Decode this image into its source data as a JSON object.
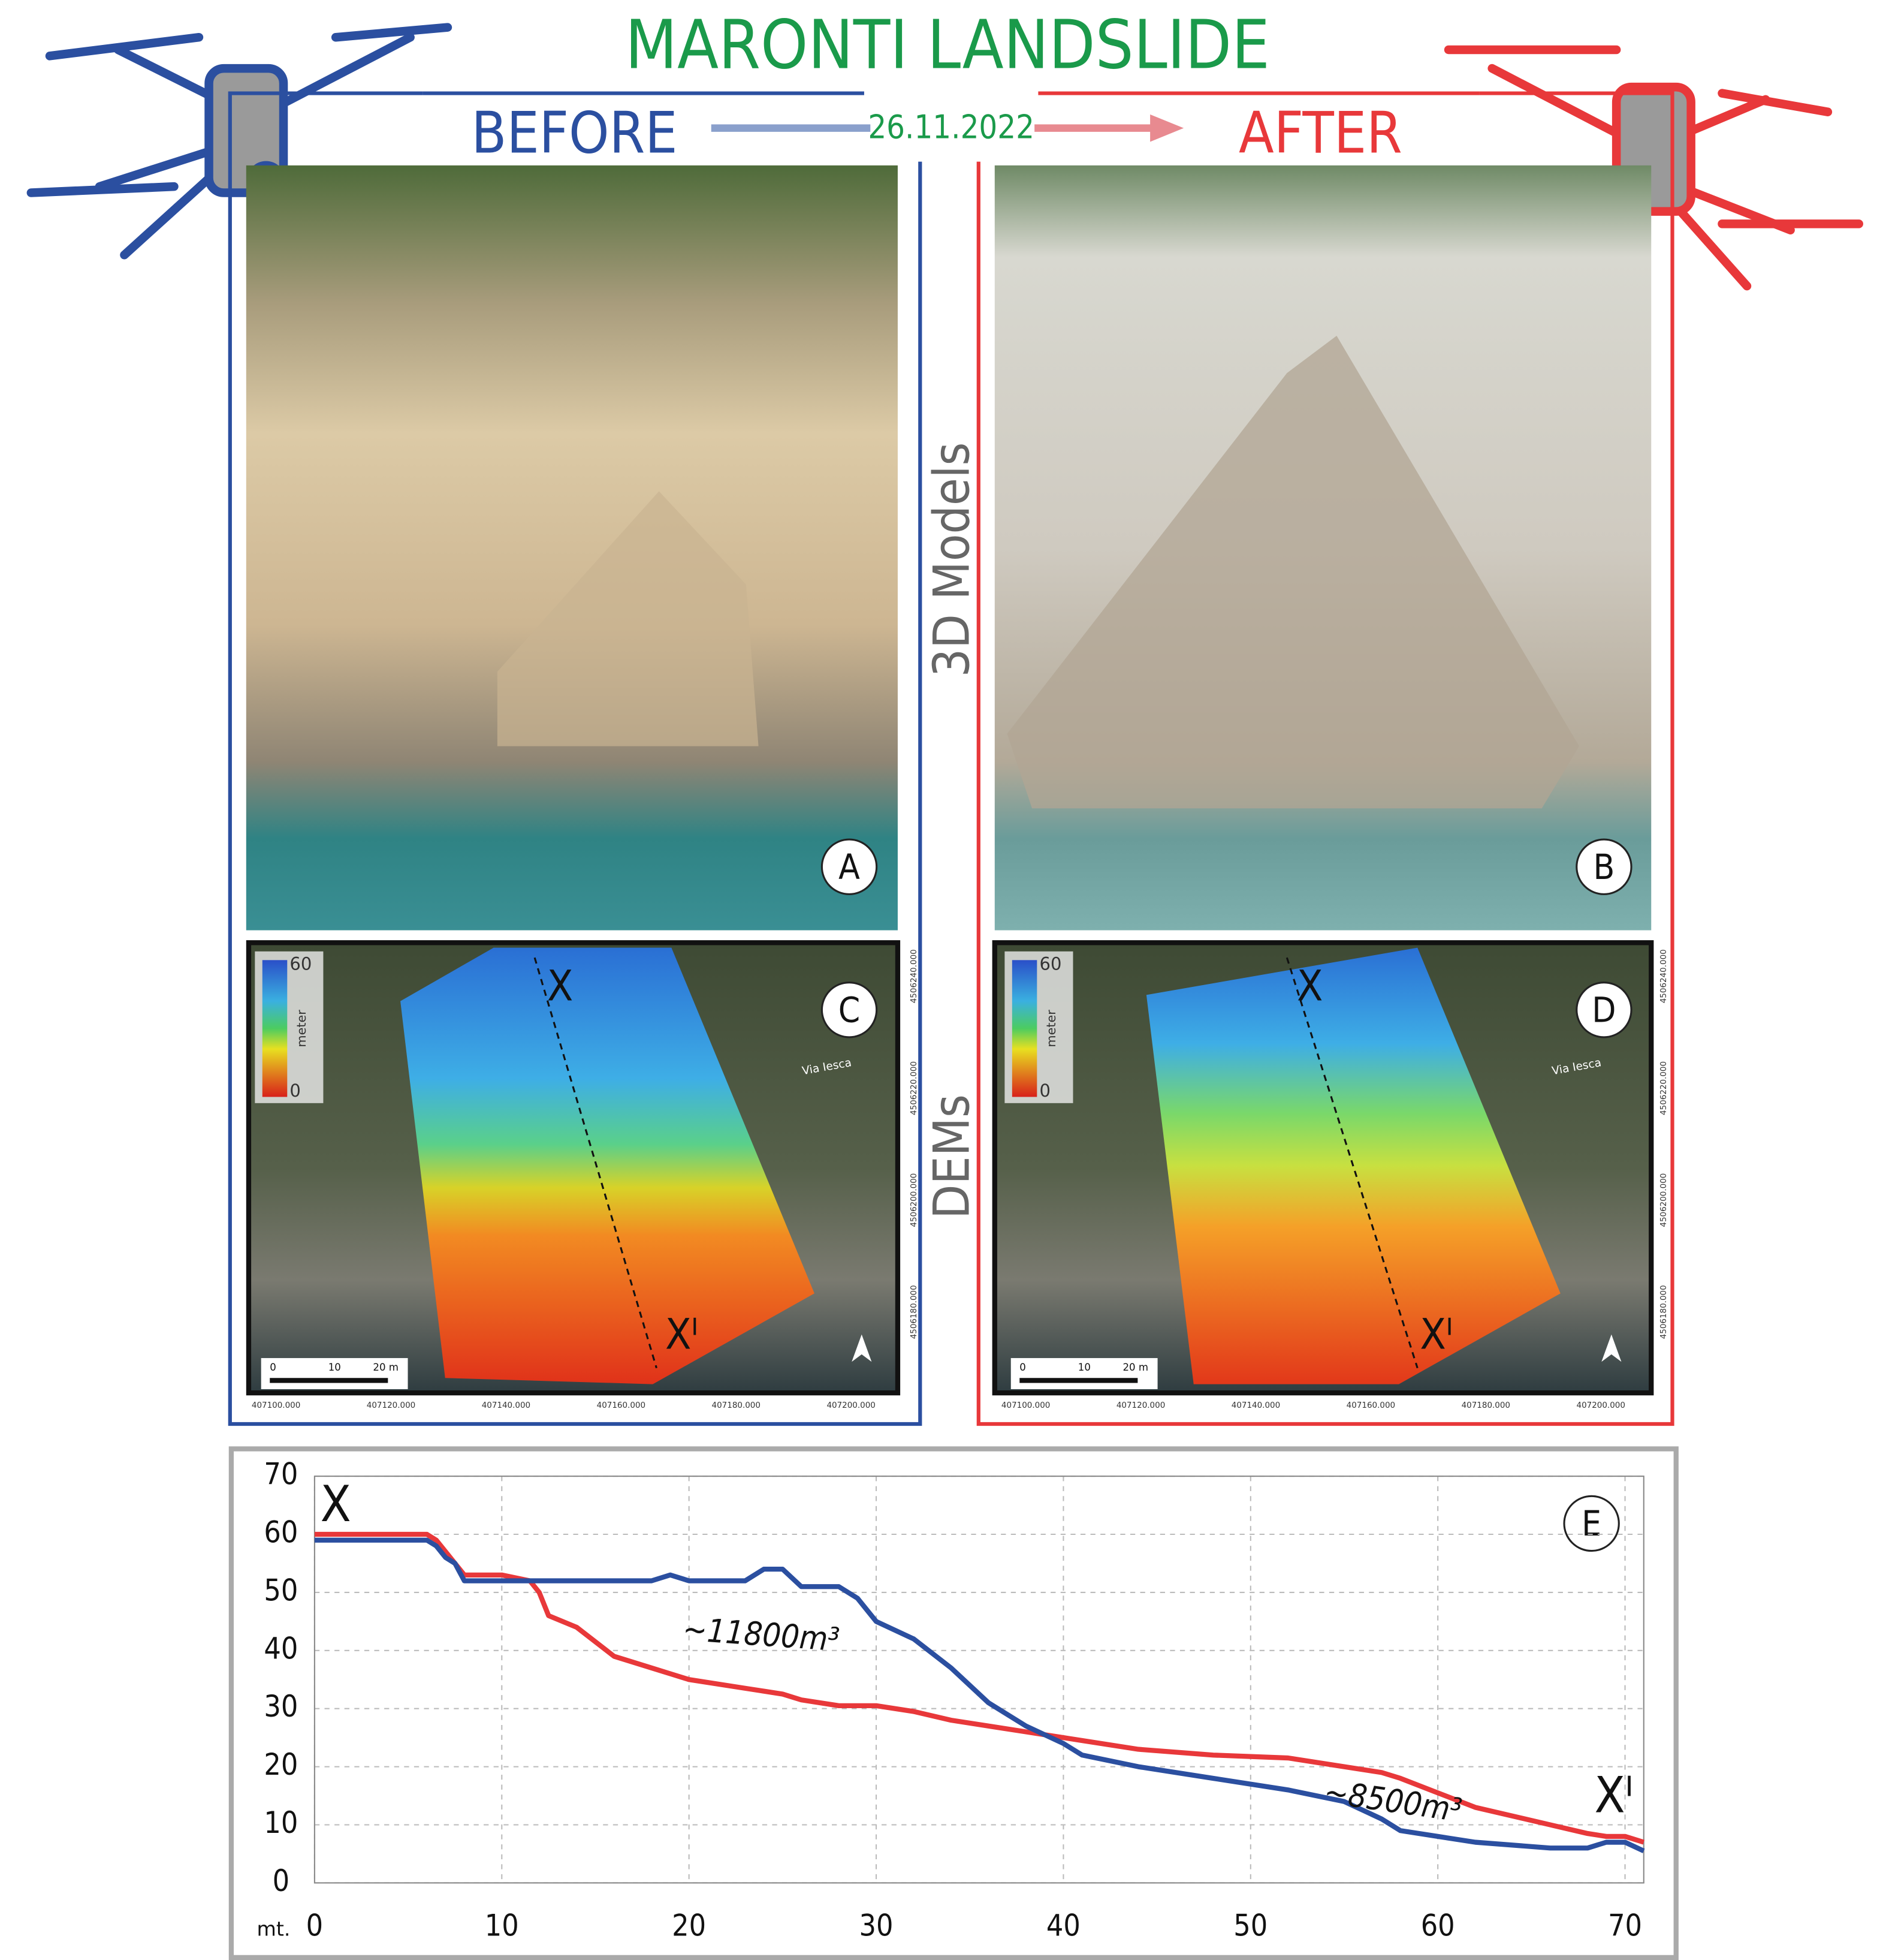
{
  "title": "MARONTI LANDSLIDE",
  "before": "BEFORE",
  "date": "26.11.2022",
  "after": "AFTER",
  "row_labels": [
    "3D Models",
    "DEMs"
  ],
  "panels": {
    "a": "A",
    "b": "B",
    "c": "C",
    "d": "D",
    "e": "E"
  },
  "dem": {
    "section_start": "X",
    "section_end": "Xᴵ",
    "legend_max": "60",
    "legend_unit": "meter",
    "legend_min": "0",
    "scale_labels": [
      "0",
      "10",
      "20 m"
    ],
    "road": "Via Iesca",
    "easting": [
      "407100.000",
      "407120.000",
      "407140.000",
      "407160.000",
      "407180.000",
      "407200.000"
    ],
    "northing": [
      "4506240.000",
      "4506220.000",
      "4506200.000",
      "4506180.000"
    ]
  },
  "chart_data": {
    "type": "line",
    "x": [
      0,
      6,
      6.5,
      7,
      7.5,
      8,
      10,
      11.5,
      12,
      12.5,
      14,
      16,
      18,
      19,
      20,
      23,
      24,
      25,
      26,
      28,
      29,
      30,
      32,
      34,
      36,
      38,
      40,
      41,
      44,
      48,
      52,
      55,
      57,
      58,
      60,
      62,
      66,
      68,
      69,
      70,
      71
    ],
    "series": [
      {
        "color": "#e8383a",
        "values": [
          60,
          60,
          59,
          57,
          55,
          53,
          53,
          52,
          50,
          46,
          44,
          39,
          37,
          36,
          35,
          33.5,
          33,
          32.5,
          31.5,
          30.5,
          30.5,
          30.5,
          29.5,
          28,
          27,
          26,
          25,
          24.5,
          23,
          22,
          21.5,
          20,
          19,
          18,
          15.5,
          13,
          10,
          8.5,
          8,
          8,
          7
        ]
      },
      {
        "color": "#2b4fa0",
        "values": [
          59,
          59,
          58,
          56,
          55,
          52,
          52,
          52,
          52,
          52,
          52,
          52,
          52,
          53,
          52,
          52,
          54,
          54,
          51,
          51,
          49,
          45,
          42,
          37,
          31,
          27,
          24,
          22,
          20,
          18,
          16,
          14,
          11,
          9,
          8,
          7,
          6,
          6,
          7,
          7,
          5.5
        ]
      }
    ],
    "xlim": [
      0,
      71
    ],
    "ylim": [
      0,
      70
    ],
    "xticks": [
      0,
      10,
      20,
      30,
      40,
      50,
      60,
      70
    ],
    "yticks": [
      0,
      10,
      20,
      30,
      40,
      50,
      60,
      70
    ],
    "x_label": "mt.",
    "grid": true,
    "annotations": [
      "X",
      "Xᴵ",
      "~11800m³",
      "~8500m³"
    ]
  }
}
